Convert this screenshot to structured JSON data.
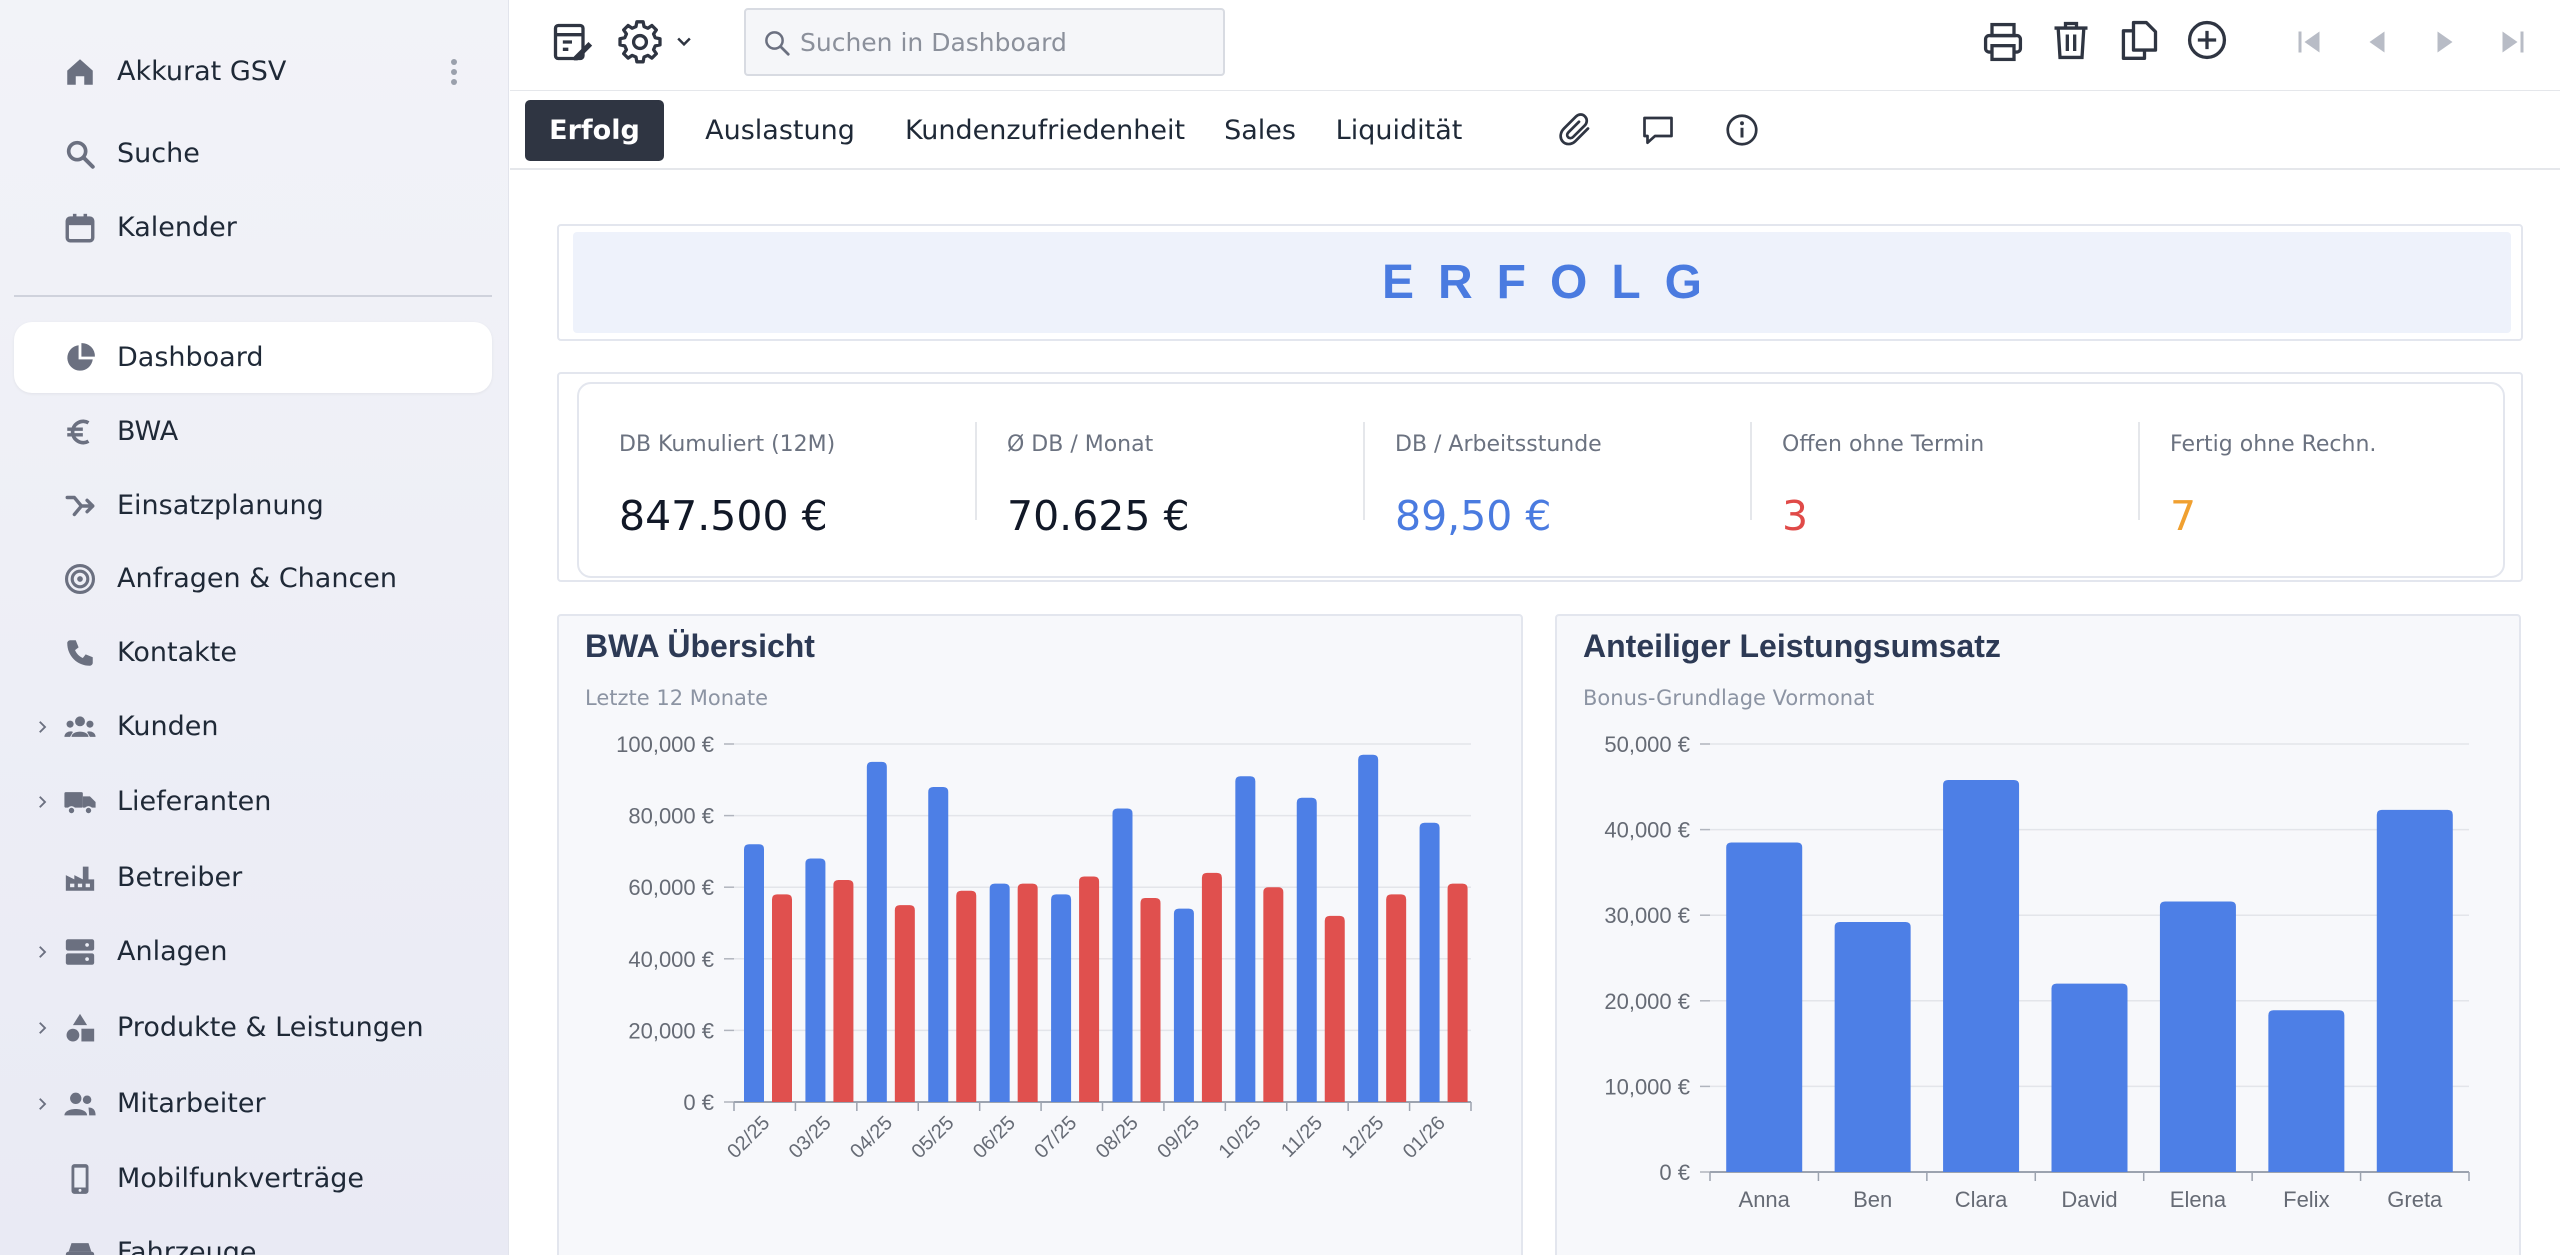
{
  "sidebar": {
    "workspace": "Akkurat GSV",
    "items": [
      {
        "label": "Suche"
      },
      {
        "label": "Kalender"
      },
      {
        "label": "Dashboard"
      },
      {
        "label": "BWA"
      },
      {
        "label": "Einsatzplanung"
      },
      {
        "label": "Anfragen & Chancen"
      },
      {
        "label": "Kontakte"
      },
      {
        "label": "Kunden"
      },
      {
        "label": "Lieferanten"
      },
      {
        "label": "Betreiber"
      },
      {
        "label": "Anlagen"
      },
      {
        "label": "Produkte & Leistungen"
      },
      {
        "label": "Mitarbeiter"
      },
      {
        "label": "Mobilfunkverträge"
      },
      {
        "label": "Fahrzeuge"
      }
    ]
  },
  "toolbar": {
    "search_placeholder": "Suchen in Dashboard"
  },
  "tabs": [
    {
      "label": "Erfolg"
    },
    {
      "label": "Auslastung"
    },
    {
      "label": "Kundenzufriedenheit"
    },
    {
      "label": "Sales"
    },
    {
      "label": "Liquidität"
    }
  ],
  "section_title": "ERFOLG",
  "kpis": [
    {
      "label": "DB Kumuliert (12M)",
      "value": "847.500 €",
      "color": "#111827"
    },
    {
      "label": "Ø DB / Monat",
      "value": "70.625 €",
      "color": "#111827"
    },
    {
      "label": "DB / Arbeitsstunde",
      "value": "89,50 €",
      "color": "#4a7be0"
    },
    {
      "label": "Offen ohne Termin",
      "value": "3",
      "color": "#e04a48"
    },
    {
      "label": "Fertig ohne Rechn.",
      "value": "7",
      "color": "#f0a030"
    }
  ],
  "colors": {
    "blue": "#4d7fe6",
    "red": "#e0504e"
  },
  "chart_data": [
    {
      "type": "bar",
      "title": "BWA Übersicht",
      "subtitle": "Letzte 12 Monate",
      "categories": [
        "02/25",
        "03/25",
        "04/25",
        "05/25",
        "06/25",
        "07/25",
        "08/25",
        "09/25",
        "10/25",
        "11/25",
        "12/25",
        "01/26"
      ],
      "series": [
        {
          "values": [
            72000,
            68000,
            95000,
            88000,
            61000,
            58000,
            82000,
            54000,
            91000,
            85000,
            97000,
            78000
          ]
        },
        {
          "values": [
            58000,
            62000,
            55000,
            59000,
            61000,
            63000,
            57000,
            64000,
            60000,
            52000,
            58000,
            61000
          ]
        }
      ],
      "yticks": [
        "0 €",
        "20,000 €",
        "40,000 €",
        "60,000 €",
        "80,000 €",
        "100,000 €"
      ],
      "ylim": [
        0,
        100000
      ],
      "grid": true
    },
    {
      "type": "bar",
      "title": "Anteiliger Leistungsumsatz",
      "subtitle": "Bonus-Grundlage Vormonat",
      "categories": [
        "Anna",
        "Ben",
        "Clara",
        "David",
        "Elena",
        "Felix",
        "Greta"
      ],
      "values": [
        38500,
        29200,
        45800,
        22000,
        31600,
        18900,
        42300
      ],
      "yticks": [
        "0 €",
        "10,000 €",
        "20,000 €",
        "30,000 €",
        "40,000 €",
        "50,000 €"
      ],
      "ylim": [
        0,
        50000
      ],
      "grid": true
    }
  ]
}
